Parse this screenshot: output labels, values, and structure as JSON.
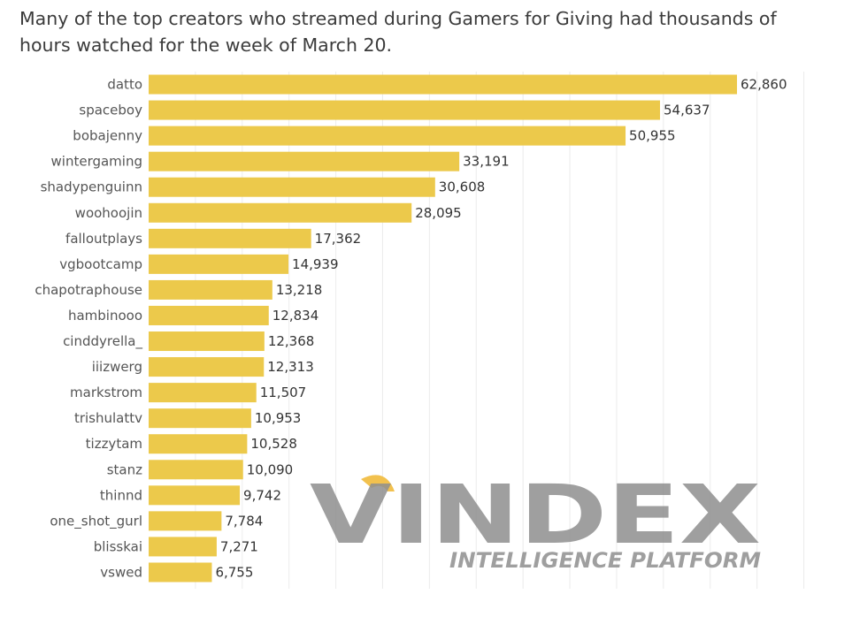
{
  "chart_data": {
    "type": "bar",
    "orientation": "horizontal",
    "title": "Many of the top creators who streamed during Gamers for Giving had thousands of hours watched for the week of March 20.",
    "categories": [
      "datto",
      "spaceboy",
      "bobajenny",
      "wintergaming",
      "shadypenguinn",
      "woohoojin",
      "falloutplays",
      "vgbootcamp",
      "chapotraphouse",
      "hambinooo",
      "cinddyrella_",
      "iiizwerg",
      "markstrom",
      "trishulattv",
      "tizzytam",
      "stanz",
      "thinnd",
      "one_shot_gurl",
      "blisskai",
      "vswed"
    ],
    "values": [
      62860,
      54637,
      50955,
      33191,
      30608,
      28095,
      17362,
      14939,
      13218,
      12834,
      12368,
      12313,
      11507,
      10953,
      10528,
      10090,
      9742,
      7784,
      7271,
      6755
    ],
    "value_labels": [
      "62,860",
      "54,637",
      "50,955",
      "33,191",
      "30,608",
      "28,095",
      "17,362",
      "14,939",
      "13,218",
      "12,834",
      "12,368",
      "12,313",
      "11,507",
      "10,953",
      "10,528",
      "10,090",
      "9,742",
      "7,784",
      "7,271",
      "6,755"
    ],
    "xlim": [
      0,
      70000
    ],
    "grid": true,
    "bar_color": "#ecc94b",
    "grid_color": "#ececec"
  },
  "watermark": {
    "logo_text": "VINDEX",
    "tagline": "INTELLIGENCE PLATFORM",
    "color": "#8f8f8f",
    "accent_color": "#f2c14e"
  }
}
